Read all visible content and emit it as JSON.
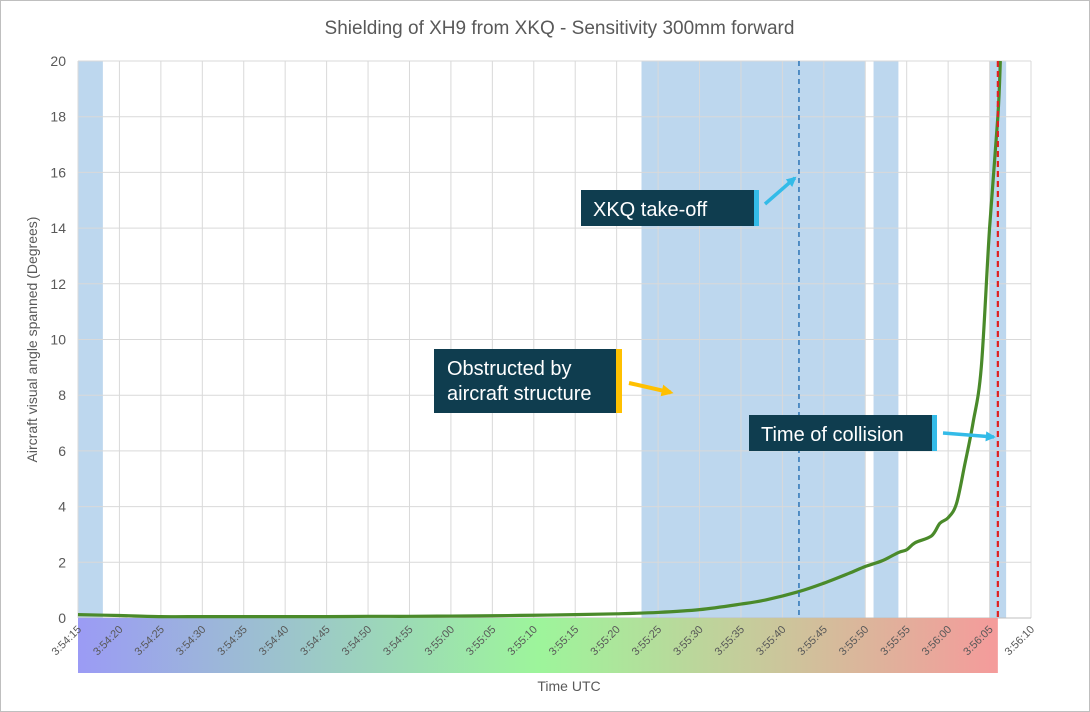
{
  "chart_data": {
    "type": "line",
    "title": "Shielding of XH9 from XKQ - Sensitivity 300mm forward",
    "xlabel": "Time UTC",
    "ylabel": "Aircraft visual angle spanned (Degrees)",
    "ylim": [
      0,
      20
    ],
    "yticks": [
      0,
      2,
      4,
      6,
      8,
      10,
      12,
      14,
      16,
      18,
      20
    ],
    "xlim": [
      "3:54:15",
      "3:56:10"
    ],
    "xticks": [
      "3:54:15",
      "3:54:20",
      "3:54:25",
      "3:54:30",
      "3:54:35",
      "3:54:40",
      "3:54:45",
      "3:54:50",
      "3:54:55",
      "3:55:00",
      "3:55:05",
      "3:55:10",
      "3:55:15",
      "3:55:20",
      "3:55:25",
      "3:55:30",
      "3:55:35",
      "3:55:40",
      "3:55:45",
      "3:55:50",
      "3:55:55",
      "3:56:00",
      "3:56:05",
      "3:56:10"
    ],
    "grid": true,
    "series": [
      {
        "color": "#4a8a2a",
        "points": [
          [
            "3:54:15",
            0.12
          ],
          [
            "3:54:20",
            0.09
          ],
          [
            "3:54:25",
            0.05
          ],
          [
            "3:54:30",
            0.05
          ],
          [
            "3:54:35",
            0.05
          ],
          [
            "3:54:40",
            0.05
          ],
          [
            "3:54:45",
            0.05
          ],
          [
            "3:54:50",
            0.06
          ],
          [
            "3:54:55",
            0.06
          ],
          [
            "3:55:00",
            0.07
          ],
          [
            "3:55:05",
            0.08
          ],
          [
            "3:55:10",
            0.1
          ],
          [
            "3:55:15",
            0.12
          ],
          [
            "3:55:20",
            0.15
          ],
          [
            "3:55:25",
            0.2
          ],
          [
            "3:55:30",
            0.3
          ],
          [
            "3:55:35",
            0.5
          ],
          [
            "3:55:38",
            0.65
          ],
          [
            "3:55:42",
            0.95
          ],
          [
            "3:55:45",
            1.25
          ],
          [
            "3:55:48",
            1.6
          ],
          [
            "3:55:50",
            1.85
          ],
          [
            "3:55:52",
            2.05
          ],
          [
            "3:55:54",
            2.35
          ],
          [
            "3:55:55",
            2.45
          ],
          [
            "3:55:56",
            2.7
          ],
          [
            "3:55:58",
            2.95
          ],
          [
            "3:55:59",
            3.4
          ],
          [
            "3:56:00",
            3.6
          ],
          [
            "3:56:01",
            4.1
          ],
          [
            "3:56:02",
            5.5
          ],
          [
            "3:56:03",
            7.0
          ],
          [
            "3:56:04",
            9.0
          ],
          [
            "3:56:05",
            14.0
          ],
          [
            "3:56:06",
            18.0
          ],
          [
            "3:56:06.3",
            20.0
          ]
        ]
      }
    ],
    "shaded_regions": [
      [
        "3:54:15",
        "3:54:18"
      ],
      [
        "3:55:23",
        "3:55:50"
      ],
      [
        "3:55:51",
        "3:55:54"
      ],
      [
        "3:56:05",
        "3:56:07"
      ]
    ],
    "shade_color": "#bdd7ee",
    "vlines": [
      {
        "x": "3:55:42",
        "style": "dashed",
        "color": "#2e75b6"
      },
      {
        "x": "3:56:06",
        "style": "dashed",
        "color": "#e02020"
      }
    ],
    "time_gradient_band": {
      "from": "3:54:15",
      "to": "3:56:06",
      "colors": [
        "#9b9bf5",
        "#9df59b",
        "#f59b9b"
      ]
    },
    "annotations": [
      {
        "text": "XKQ take-off",
        "box_color": "#0f3d4f",
        "bar_color": "#33bbe8",
        "arrow_color": "#33bbe8",
        "arrow_to": [
          "3:55:42",
          15.8
        ]
      },
      {
        "text": "Obstructed by\naircraft structure",
        "box_color": "#0f3d4f",
        "bar_color": "#ffc000",
        "arrow_color": "#ffc000",
        "arrow_to": [
          "3:55:27",
          8.1
        ]
      },
      {
        "text": "Time of collision",
        "box_color": "#0f3d4f",
        "bar_color": "#33bbe8",
        "arrow_color": "#33bbe8",
        "arrow_to": [
          "3:56:06",
          6.5
        ]
      }
    ]
  }
}
